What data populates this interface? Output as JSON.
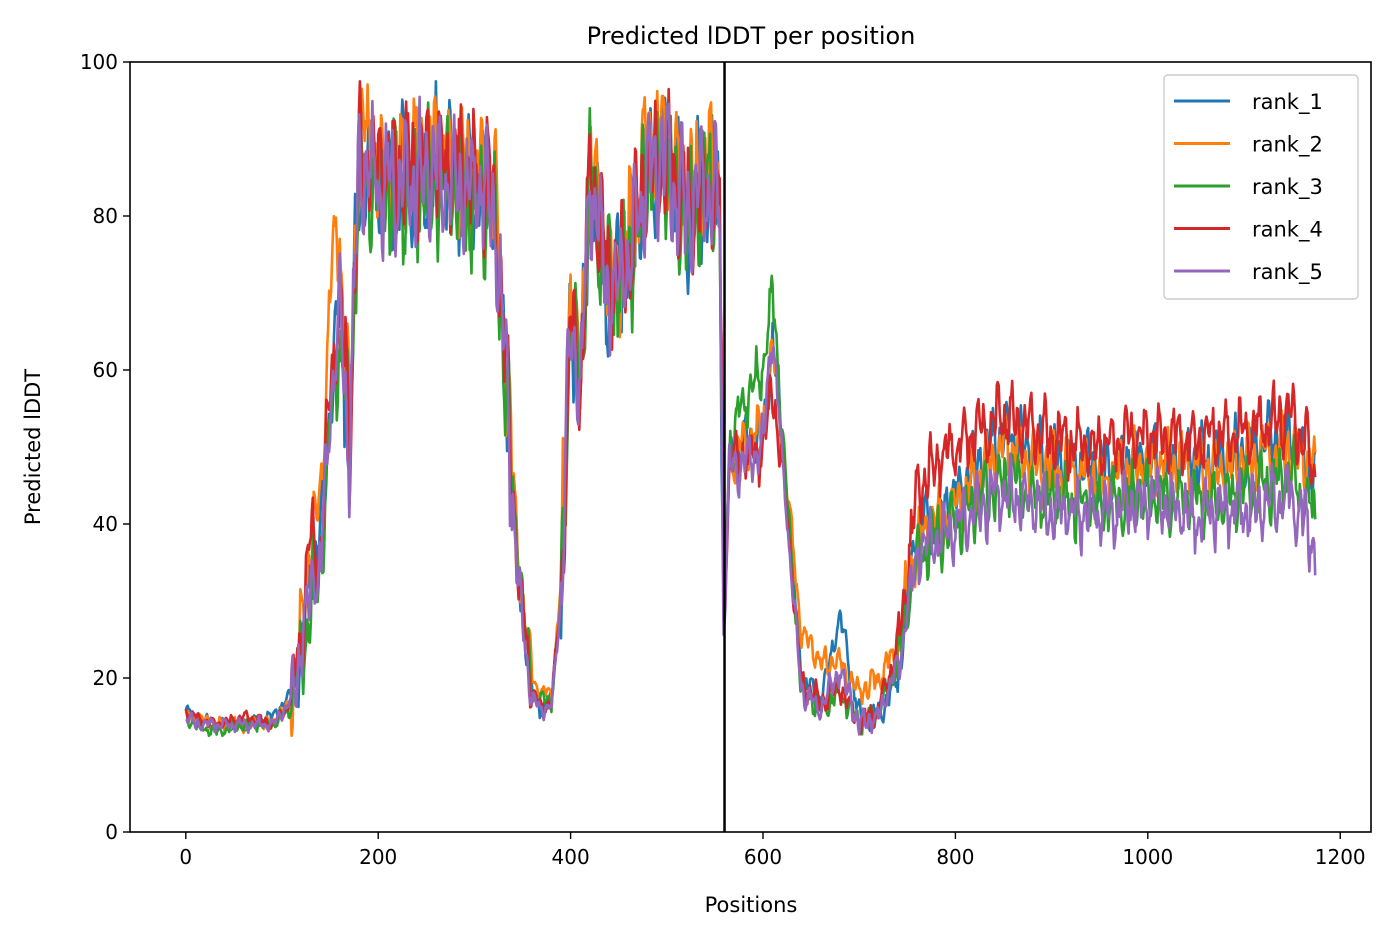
{
  "chart_data": {
    "type": "line",
    "title": "Predicted lDDT per position",
    "xlabel": "Positions",
    "ylabel": "Predicted lDDT",
    "xlim": [
      -58,
      1232
    ],
    "ylim": [
      0,
      100
    ],
    "xticks": [
      0,
      200,
      400,
      600,
      800,
      1000,
      1200
    ],
    "yticks": [
      0,
      20,
      40,
      60,
      80,
      100
    ],
    "grid": false,
    "legend_position": "top-right",
    "vline_x": 560,
    "n_positions": 1175,
    "anchors_x": [
      0,
      10,
      30,
      60,
      90,
      110,
      120,
      130,
      140,
      150,
      160,
      170,
      180,
      200,
      230,
      260,
      290,
      320,
      335,
      345,
      360,
      370,
      380,
      390,
      400,
      410,
      420,
      440,
      460,
      480,
      500,
      520,
      540,
      555,
      559,
      565,
      580,
      600,
      610,
      620,
      640,
      660,
      680,
      700,
      720,
      740,
      760,
      780,
      800,
      850,
      900,
      950,
      1000,
      1050,
      1100,
      1150,
      1174
    ],
    "series": [
      {
        "name": "rank_1",
        "color": "#1f77b4",
        "seed": 11,
        "values": [
          16,
          15,
          14,
          14,
          15,
          18,
          24,
          34,
          38,
          55,
          70,
          50,
          88,
          84,
          84,
          86,
          84,
          82,
          55,
          34,
          18,
          16,
          17,
          30,
          68,
          58,
          86,
          70,
          75,
          86,
          88,
          80,
          84,
          82,
          28,
          48,
          50,
          52,
          64,
          50,
          20,
          17,
          28,
          15,
          15,
          20,
          40,
          40,
          44,
          52,
          48,
          47,
          49,
          48,
          50,
          52,
          46
        ]
      },
      {
        "name": "rank_2",
        "color": "#ff7f0e",
        "seed": 23,
        "values": [
          15,
          15,
          14,
          14,
          14,
          17,
          26,
          38,
          42,
          72,
          78,
          52,
          90,
          87,
          87,
          89,
          86,
          84,
          58,
          36,
          20,
          18,
          18,
          32,
          72,
          60,
          88,
          72,
          76,
          89,
          90,
          82,
          86,
          84,
          27,
          48,
          50,
          52,
          63,
          51,
          26,
          22,
          22,
          18,
          20,
          24,
          38,
          40,
          42,
          50,
          47,
          46,
          48,
          47,
          48,
          50,
          47
        ]
      },
      {
        "name": "rank_3",
        "color": "#2ca02c",
        "seed": 37,
        "values": [
          15,
          14,
          13,
          14,
          14,
          16,
          22,
          30,
          36,
          52,
          64,
          50,
          86,
          83,
          83,
          85,
          82,
          81,
          54,
          36,
          18,
          17,
          17,
          30,
          67,
          57,
          85,
          70,
          74,
          85,
          87,
          80,
          84,
          81,
          26,
          50,
          56,
          60,
          70,
          52,
          18,
          16,
          18,
          14,
          16,
          22,
          36,
          38,
          40,
          46,
          43,
          42,
          44,
          43,
          44,
          46,
          41
        ]
      },
      {
        "name": "rank_4",
        "color": "#d62728",
        "seed": 53,
        "values": [
          16,
          15,
          14,
          15,
          14,
          17,
          26,
          38,
          36,
          58,
          68,
          52,
          88,
          86,
          86,
          88,
          86,
          84,
          56,
          34,
          18,
          16,
          17,
          30,
          66,
          57,
          86,
          71,
          75,
          86,
          88,
          81,
          85,
          83,
          28,
          47,
          49,
          50,
          58,
          48,
          19,
          17,
          19,
          14,
          16,
          24,
          44,
          48,
          50,
          54,
          51,
          50,
          52,
          51,
          52,
          54,
          47
        ]
      },
      {
        "name": "rank_5",
        "color": "#9467bd",
        "seed": 71,
        "values": [
          15,
          14,
          14,
          14,
          14,
          17,
          24,
          32,
          34,
          56,
          66,
          50,
          87,
          84,
          84,
          86,
          84,
          82,
          55,
          33,
          17,
          16,
          16,
          30,
          67,
          57,
          85,
          70,
          74,
          85,
          87,
          80,
          84,
          82,
          27,
          47,
          48,
          50,
          66,
          48,
          18,
          16,
          21,
          14,
          15,
          22,
          36,
          38,
          40,
          44,
          42,
          41,
          43,
          41,
          42,
          44,
          37
        ]
      }
    ]
  }
}
